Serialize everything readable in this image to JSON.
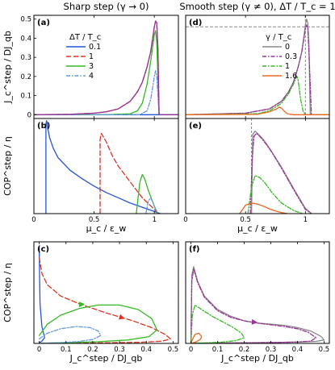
{
  "colors": {
    "blue": "#2255dd",
    "red": "#dd3322",
    "green": "#33bb22",
    "lightblue": "#6699dd",
    "gray": "#888888",
    "purple": "#993399",
    "orange": "#ee6622"
  },
  "chart_data": [
    {
      "id": "a",
      "type": "line",
      "panel_label": "(a)",
      "column_title": "Sharp step (γ → 0)",
      "xlabel": "",
      "ylabel": "J_c^step / DJ_qb",
      "xlim": [
        0,
        1.2
      ],
      "ylim": [
        -0.02,
        0.52
      ],
      "xticks": [
        0,
        0.5,
        1
      ],
      "xtick_labels": [
        "",
        "",
        ""
      ],
      "yticks": [
        0,
        0.1,
        0.2,
        0.3,
        0.4,
        0.5
      ],
      "ytick_labels": [
        "0",
        "0.1",
        "0.2",
        "0.3",
        "0.4",
        "0.5"
      ],
      "legend_title": "ΔT / T_c",
      "legend_placement": "top-left",
      "series": [
        {
          "name": "0.1",
          "color": "blue",
          "dash": "",
          "x": [
            0,
            0.5,
            0.9,
            1.02,
            1.04,
            1.1,
            1.2
          ],
          "y": [
            0,
            0,
            0,
            0,
            0,
            0,
            0
          ]
        },
        {
          "name": "1",
          "color": "red",
          "dash": "6,3",
          "x": [
            0,
            0.3,
            0.5,
            0.6,
            0.7,
            0.8,
            0.86,
            0.9,
            0.94,
            0.97,
            1.0,
            1.01,
            1.02,
            1.03,
            1.04,
            1.2
          ],
          "y": [
            0,
            0.002,
            0.008,
            0.015,
            0.03,
            0.07,
            0.12,
            0.17,
            0.25,
            0.33,
            0.46,
            0.49,
            0.48,
            0.35,
            0,
            0
          ]
        },
        {
          "name": "3",
          "color": "green",
          "dash": "",
          "x": [
            0,
            0.6,
            0.8,
            0.86,
            0.9,
            0.94,
            0.97,
            1.0,
            1.01,
            1.02,
            1.03,
            1.04,
            1.2
          ],
          "y": [
            0,
            0,
            0.005,
            0.02,
            0.06,
            0.16,
            0.28,
            0.42,
            0.44,
            0.38,
            0.2,
            0,
            0
          ]
        },
        {
          "name": "4",
          "color": "lightblue",
          "dash": "5,2,1.5,2",
          "x": [
            0,
            0.88,
            0.94,
            0.97,
            1.0,
            1.01,
            1.02,
            1.03,
            1.04,
            1.2
          ],
          "y": [
            0,
            0,
            0.02,
            0.08,
            0.2,
            0.23,
            0.2,
            0.1,
            0,
            0
          ]
        },
        {
          "name": "",
          "color": "purple",
          "dash": "",
          "x": [
            0,
            0.3,
            0.5,
            0.6,
            0.7,
            0.8,
            0.86,
            0.9,
            0.94,
            0.97,
            1.0,
            1.01,
            1.02,
            1.03,
            1.04,
            1.2
          ],
          "y": [
            0,
            0.002,
            0.008,
            0.015,
            0.03,
            0.07,
            0.12,
            0.17,
            0.25,
            0.33,
            0.46,
            0.49,
            0.48,
            0.35,
            0,
            0
          ]
        }
      ]
    },
    {
      "id": "b",
      "type": "line",
      "panel_label": "(b)",
      "xlabel": "μ_c / ε_w",
      "ylabel": "COP^step / η",
      "xlim": [
        0,
        1.2
      ],
      "ylim": [
        0,
        0.9
      ],
      "xticks": [
        0,
        0.5,
        1
      ],
      "xtick_labels": [
        "0",
        "0.5",
        "1"
      ],
      "yticks": [],
      "ytick_labels": [],
      "series": [
        {
          "name": "0.1",
          "color": "blue",
          "dash": "",
          "x": [
            0.1,
            0.1,
            0.105,
            0.11,
            0.13,
            0.16,
            0.2,
            0.3,
            0.4,
            0.5,
            0.6,
            0.7,
            0.8,
            0.9,
            1.0,
            1.05
          ],
          "y": [
            0,
            0.85,
            0.88,
            0.84,
            0.72,
            0.62,
            0.53,
            0.41,
            0.33,
            0.26,
            0.2,
            0.15,
            0.1,
            0.06,
            0.02,
            0
          ]
        },
        {
          "name": "1",
          "color": "red",
          "dash": "6,3",
          "x": [
            0.55,
            0.55,
            0.56,
            0.6,
            0.65,
            0.7,
            0.8,
            0.9,
            1.0,
            1.03
          ],
          "y": [
            0,
            0.7,
            0.76,
            0.68,
            0.55,
            0.45,
            0.3,
            0.15,
            0.04,
            0
          ]
        },
        {
          "name": "3",
          "color": "green",
          "dash": "",
          "x": [
            0.85,
            0.86,
            0.88,
            0.9,
            0.92,
            0.95,
            1.0,
            1.03
          ],
          "y": [
            0,
            0.1,
            0.3,
            0.37,
            0.33,
            0.22,
            0.07,
            0
          ]
        },
        {
          "name": "4",
          "color": "lightblue",
          "dash": "5,2,1.5,2",
          "x": [
            0.93,
            0.95,
            0.97,
            0.99,
            1.01,
            1.03
          ],
          "y": [
            0,
            0.12,
            0.15,
            0.1,
            0.04,
            0
          ]
        }
      ]
    },
    {
      "id": "c",
      "type": "line",
      "panel_label": "(c)",
      "xlabel": "J_c^step / DJ_qb",
      "ylabel": "COP^step / η",
      "xlim": [
        -0.02,
        0.52
      ],
      "ylim": [
        0,
        0.9
      ],
      "xticks": [
        0,
        0.1,
        0.2,
        0.3,
        0.4,
        0.5
      ],
      "xtick_labels": [
        "0",
        "0.1",
        "0.2",
        "0.3",
        "0.4",
        "0.5"
      ],
      "yticks": [],
      "ytick_labels": [],
      "series": [
        {
          "name": "0.1",
          "color": "blue",
          "dash": "",
          "x": [
            0,
            0.001,
            0.003,
            0.01,
            0.02,
            0.01,
            0.003,
            0
          ],
          "y": [
            0.85,
            0.6,
            0.35,
            0.15,
            0.05,
            0.02,
            0.01,
            0
          ]
        },
        {
          "name": "1",
          "color": "red",
          "dash": "6,3",
          "x": [
            0,
            0.01,
            0.03,
            0.08,
            0.15,
            0.25,
            0.35,
            0.42,
            0.47,
            0.49,
            0.46,
            0.38,
            0.25,
            0.12,
            0.04,
            0
          ],
          "y": [
            0.76,
            0.62,
            0.52,
            0.42,
            0.35,
            0.27,
            0.2,
            0.14,
            0.08,
            0.04,
            0.02,
            0.01,
            0.005,
            0.003,
            0.001,
            0
          ]
        },
        {
          "name": "3",
          "color": "green",
          "dash": "",
          "x": [
            0,
            0.03,
            0.08,
            0.15,
            0.22,
            0.3,
            0.37,
            0.42,
            0.44,
            0.41,
            0.33,
            0.22,
            0.12,
            0.05,
            0.01,
            0
          ],
          "y": [
            0.07,
            0.17,
            0.25,
            0.31,
            0.34,
            0.34,
            0.3,
            0.22,
            0.12,
            0.06,
            0.03,
            0.015,
            0.008,
            0.004,
            0.001,
            0
          ]
        },
        {
          "name": "4",
          "color": "lightblue",
          "dash": "5,2,1.5,2",
          "x": [
            0,
            0.03,
            0.08,
            0.14,
            0.19,
            0.22,
            0.23,
            0.2,
            0.14,
            0.07,
            0.02,
            0
          ],
          "y": [
            0.04,
            0.09,
            0.13,
            0.15,
            0.14,
            0.11,
            0.07,
            0.035,
            0.015,
            0.006,
            0.002,
            0
          ]
        }
      ],
      "arrows": [
        {
          "color": "red",
          "x": 0.3,
          "y": 0.235,
          "dx": 0.02,
          "dy": -0.015
        },
        {
          "color": "green",
          "x": 0.15,
          "y": 0.345,
          "dx": 0.02,
          "dy": 0.004
        }
      ]
    },
    {
      "id": "d",
      "type": "line",
      "panel_label": "(d)",
      "column_title": "Smooth step (γ ≠ 0), ΔT / T_c = 1",
      "xlabel": "",
      "ylabel": "",
      "xlim": [
        0,
        1.2
      ],
      "ylim": [
        -0.02,
        0.52
      ],
      "xticks": [
        0,
        0.5,
        1
      ],
      "xtick_labels": [
        "",
        "",
        ""
      ],
      "yticks": [],
      "ytick_labels": [],
      "legend_title": "γ / T_c",
      "legend_placement": "top-left",
      "hline": {
        "y": 0.46,
        "color": "gray",
        "dash": "4,2"
      },
      "vline": {
        "x": 1.0,
        "color": "gray",
        "dash": "3,2"
      },
      "series": [
        {
          "name": "0",
          "color": "gray",
          "dash": "",
          "x": [
            0,
            0.5,
            0.7,
            0.8,
            0.86,
            0.9,
            0.94,
            0.97,
            0.99,
            1.0,
            1.01,
            1.02,
            1.03,
            1.04,
            1.2
          ],
          "y": [
            0,
            0.008,
            0.03,
            0.07,
            0.12,
            0.17,
            0.25,
            0.33,
            0.42,
            0.47,
            0.5,
            0.48,
            0.35,
            0,
            0
          ]
        },
        {
          "name": "0.3",
          "color": "purple",
          "dash": "5,2,1.5,2",
          "x": [
            0,
            0.5,
            0.7,
            0.8,
            0.86,
            0.9,
            0.94,
            0.97,
            0.99,
            1.0,
            1.01,
            1.02,
            1.03,
            1.05,
            1.2
          ],
          "y": [
            0,
            0.008,
            0.03,
            0.07,
            0.12,
            0.17,
            0.25,
            0.33,
            0.41,
            0.45,
            0.47,
            0.45,
            0.32,
            0,
            0
          ]
        },
        {
          "name": "1",
          "color": "green",
          "dash": "5,2,1.5,2",
          "x": [
            0,
            0.6,
            0.7,
            0.8,
            0.86,
            0.9,
            0.92,
            0.93,
            0.94,
            0.96,
            0.98,
            1.0,
            1.2
          ],
          "y": [
            0,
            0.005,
            0.02,
            0.06,
            0.11,
            0.16,
            0.19,
            0.2,
            0.18,
            0.08,
            0.02,
            0,
            0
          ]
        },
        {
          "name": "1.6",
          "color": "orange",
          "dash": "",
          "x": [
            0,
            0.6,
            0.7,
            0.76,
            0.78,
            0.8,
            0.82,
            0.85,
            0.9,
            1.2
          ],
          "y": [
            0,
            0.002,
            0.015,
            0.03,
            0.04,
            0.035,
            0.02,
            0.005,
            0,
            0
          ]
        }
      ]
    },
    {
      "id": "e",
      "type": "line",
      "panel_label": "(e)",
      "xlabel": "μ_c / ε_w",
      "ylabel": "",
      "xlim": [
        0,
        1.2
      ],
      "ylim": [
        0,
        0.9
      ],
      "xticks": [
        0,
        0.5,
        1
      ],
      "xtick_labels": [
        "0",
        "0.5",
        "1"
      ],
      "yticks": [],
      "ytick_labels": [],
      "vline": {
        "x": 0.55,
        "color": "gray",
        "dash": "3,2"
      },
      "series": [
        {
          "name": "0",
          "color": "gray",
          "dash": "",
          "x": [
            0.55,
            0.56,
            0.58,
            0.6,
            0.65,
            0.7,
            0.8,
            0.9,
            1.0,
            1.05
          ],
          "y": [
            0,
            0.75,
            0.78,
            0.76,
            0.7,
            0.62,
            0.44,
            0.24,
            0.05,
            0
          ]
        },
        {
          "name": "0.3",
          "color": "purple",
          "dash": "5,2,1.5,2",
          "x": [
            0.54,
            0.555,
            0.57,
            0.59,
            0.62,
            0.67,
            0.72,
            0.8,
            0.9,
            1.0,
            1.05
          ],
          "y": [
            0,
            0.5,
            0.73,
            0.76,
            0.73,
            0.66,
            0.58,
            0.43,
            0.23,
            0.04,
            0
          ]
        },
        {
          "name": "1",
          "color": "green",
          "dash": "5,2,1.5,2",
          "x": [
            0.52,
            0.55,
            0.58,
            0.62,
            0.67,
            0.72,
            0.8,
            0.9,
            0.95,
            0.98
          ],
          "y": [
            0,
            0.25,
            0.36,
            0.34,
            0.28,
            0.2,
            0.1,
            0.03,
            0.01,
            0
          ]
        },
        {
          "name": "1.6",
          "color": "orange",
          "dash": "",
          "x": [
            0.45,
            0.5,
            0.55,
            0.6,
            0.65,
            0.7,
            0.75,
            0.8,
            0.85
          ],
          "y": [
            0,
            0.08,
            0.1,
            0.09,
            0.07,
            0.045,
            0.025,
            0.01,
            0
          ]
        }
      ]
    },
    {
      "id": "f",
      "type": "line",
      "panel_label": "(f)",
      "xlabel": "J_c^step / DJ_qb",
      "ylabel": "",
      "xlim": [
        -0.02,
        0.52
      ],
      "ylim": [
        0,
        0.9
      ],
      "xticks": [
        0,
        0.1,
        0.2,
        0.3,
        0.4,
        0.5
      ],
      "xtick_labels": [
        "0",
        "0.1",
        "0.2",
        "0.3",
        "0.4",
        "0.5"
      ],
      "yticks": [],
      "ytick_labels": [],
      "series": [
        {
          "name": "0",
          "color": "gray",
          "dash": "",
          "x": [
            0,
            0.003,
            0.01,
            0.025,
            0.05,
            0.1,
            0.15,
            0.2,
            0.25,
            0.3,
            0.35,
            0.4,
            0.45,
            0.49,
            0.5,
            0.47,
            0.4,
            0.3,
            0.2,
            0.1,
            0.04,
            0.01,
            0
          ],
          "y": [
            0,
            0.6,
            0.68,
            0.55,
            0.42,
            0.3,
            0.24,
            0.2,
            0.18,
            0.17,
            0.16,
            0.14,
            0.11,
            0.06,
            0.03,
            0.018,
            0.012,
            0.008,
            0.005,
            0.003,
            0.002,
            0.001,
            0
          ]
        },
        {
          "name": "0.3",
          "color": "purple",
          "dash": "5,2,1.5,2",
          "x": [
            0,
            0.003,
            0.01,
            0.025,
            0.05,
            0.1,
            0.15,
            0.2,
            0.25,
            0.3,
            0.35,
            0.4,
            0.44,
            0.47,
            0.45,
            0.4,
            0.3,
            0.2,
            0.1,
            0.04,
            0.01,
            0
          ],
          "y": [
            0,
            0.55,
            0.66,
            0.54,
            0.41,
            0.29,
            0.23,
            0.2,
            0.18,
            0.165,
            0.15,
            0.13,
            0.1,
            0.05,
            0.02,
            0.012,
            0.008,
            0.005,
            0.003,
            0.002,
            0.001,
            0
          ]
        },
        {
          "name": "1",
          "color": "green",
          "dash": "5,2,1.5,2",
          "x": [
            0,
            0.005,
            0.015,
            0.04,
            0.08,
            0.12,
            0.16,
            0.19,
            0.2,
            0.17,
            0.12,
            0.07,
            0.03,
            0.01,
            0
          ],
          "y": [
            0,
            0.25,
            0.34,
            0.3,
            0.24,
            0.19,
            0.14,
            0.09,
            0.05,
            0.025,
            0.012,
            0.006,
            0.003,
            0.001,
            0
          ]
        },
        {
          "name": "1.6",
          "color": "orange",
          "dash": "",
          "x": [
            0,
            0.005,
            0.015,
            0.03,
            0.04,
            0.035,
            0.02,
            0.008,
            0
          ],
          "y": [
            0,
            0.03,
            0.08,
            0.09,
            0.06,
            0.035,
            0.015,
            0.005,
            0
          ]
        }
      ],
      "arrows": [
        {
          "color": "purple",
          "x": 0.23,
          "y": 0.19,
          "dx": 0.02,
          "dy": -0.004
        }
      ]
    }
  ]
}
